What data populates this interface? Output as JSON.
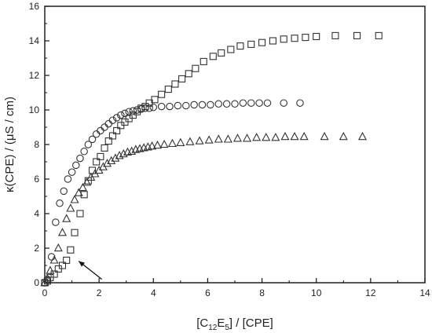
{
  "chart_data": {
    "type": "scatter",
    "title": "",
    "xlabel": {
      "pre": "[C",
      "sub1": "12",
      "mid": "E",
      "sub2": "5",
      "post": "] / [CPE]"
    },
    "ylabel": "κ(CPE) / (μS / cm)",
    "xlim": [
      0,
      14
    ],
    "ylim": [
      0,
      16
    ],
    "xticks": [
      "0",
      "2",
      "4",
      "6",
      "8",
      "10",
      "12",
      "14"
    ],
    "yticks": [
      "0",
      "2",
      "4",
      "6",
      "8",
      "10",
      "12",
      "14",
      "16"
    ],
    "grid": false,
    "legend": "none",
    "annotations": [
      {
        "type": "arrow",
        "from": [
          2.1,
          0.2
        ],
        "to": [
          1.25,
          1.25
        ]
      }
    ],
    "series": [
      {
        "marker": "square",
        "x": [
          0.0,
          0.1,
          0.2,
          0.35,
          0.5,
          0.65,
          0.8,
          0.95,
          1.1,
          1.3,
          1.45,
          1.6,
          1.75,
          1.9,
          2.05,
          2.2,
          2.35,
          2.5,
          2.65,
          2.8,
          2.95,
          3.1,
          3.25,
          3.4,
          3.55,
          3.7,
          3.85,
          4.05,
          4.3,
          4.55,
          4.8,
          5.05,
          5.3,
          5.55,
          5.85,
          6.2,
          6.5,
          6.85,
          7.2,
          7.6,
          8.0,
          8.4,
          8.8,
          9.2,
          9.6,
          10.0,
          10.7,
          11.5,
          12.3
        ],
        "y": [
          0.0,
          0.1,
          0.3,
          0.5,
          0.8,
          1.0,
          1.3,
          1.9,
          2.9,
          4.0,
          5.1,
          5.9,
          6.5,
          7.0,
          7.3,
          7.8,
          8.2,
          8.5,
          8.8,
          9.1,
          9.3,
          9.5,
          9.7,
          9.9,
          10.1,
          10.2,
          10.4,
          10.6,
          10.9,
          11.2,
          11.5,
          11.8,
          12.1,
          12.4,
          12.8,
          13.1,
          13.3,
          13.5,
          13.7,
          13.8,
          13.9,
          14.0,
          14.1,
          14.15,
          14.2,
          14.25,
          14.3,
          14.3,
          14.3
        ]
      },
      {
        "marker": "circle",
        "x": [
          0.0,
          0.1,
          0.25,
          0.4,
          0.55,
          0.7,
          0.85,
          1.0,
          1.15,
          1.3,
          1.45,
          1.6,
          1.75,
          1.9,
          2.05,
          2.2,
          2.35,
          2.5,
          2.65,
          2.8,
          2.95,
          3.1,
          3.25,
          3.4,
          3.55,
          3.7,
          3.85,
          4.0,
          4.3,
          4.6,
          4.9,
          5.2,
          5.5,
          5.8,
          6.1,
          6.4,
          6.7,
          7.0,
          7.3,
          7.6,
          7.9,
          8.2,
          8.8,
          9.4
        ],
        "y": [
          0.0,
          0.2,
          1.5,
          3.5,
          4.6,
          5.3,
          6.0,
          6.4,
          6.8,
          7.2,
          7.6,
          8.0,
          8.3,
          8.6,
          8.8,
          9.0,
          9.2,
          9.4,
          9.55,
          9.7,
          9.8,
          9.9,
          9.95,
          10.0,
          10.05,
          10.1,
          10.1,
          10.15,
          10.2,
          10.2,
          10.25,
          10.25,
          10.3,
          10.3,
          10.3,
          10.35,
          10.35,
          10.35,
          10.4,
          10.4,
          10.4,
          10.4,
          10.4,
          10.4
        ]
      },
      {
        "marker": "triangle",
        "x": [
          0.0,
          0.1,
          0.2,
          0.35,
          0.5,
          0.65,
          0.8,
          0.95,
          1.1,
          1.25,
          1.4,
          1.55,
          1.7,
          1.85,
          2.0,
          2.15,
          2.3,
          2.45,
          2.6,
          2.75,
          2.9,
          3.05,
          3.2,
          3.35,
          3.5,
          3.65,
          3.8,
          3.95,
          4.15,
          4.4,
          4.7,
          5.0,
          5.35,
          5.7,
          6.05,
          6.4,
          6.75,
          7.1,
          7.45,
          7.8,
          8.15,
          8.5,
          8.85,
          9.2,
          9.55,
          10.3,
          11.0,
          11.7
        ],
        "y": [
          0.0,
          0.2,
          0.7,
          1.3,
          2.0,
          2.9,
          3.7,
          4.3,
          4.8,
          5.2,
          5.5,
          5.8,
          6.1,
          6.3,
          6.5,
          6.7,
          6.9,
          7.05,
          7.2,
          7.35,
          7.45,
          7.55,
          7.6,
          7.7,
          7.75,
          7.8,
          7.85,
          7.9,
          7.95,
          8.0,
          8.05,
          8.1,
          8.15,
          8.2,
          8.25,
          8.3,
          8.3,
          8.35,
          8.35,
          8.4,
          8.4,
          8.4,
          8.45,
          8.45,
          8.45,
          8.45,
          8.45,
          8.45
        ]
      }
    ]
  }
}
